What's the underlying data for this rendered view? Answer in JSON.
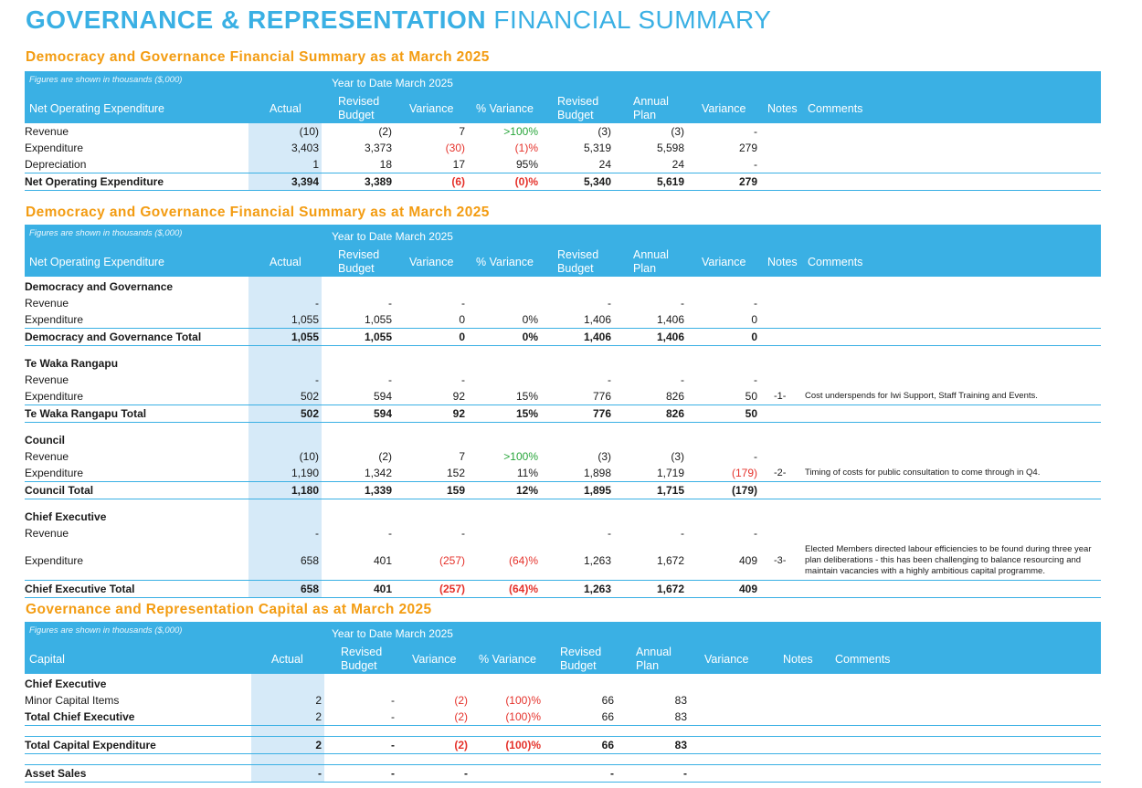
{
  "page": {
    "title_bold": "GOVERNANCE & REPRESENTATION",
    "title_light": "FINANCIAL SUMMARY"
  },
  "table1": {
    "title": "Democracy and Governance Financial Summary as at March 2025",
    "note": "Figures are shown in thousands ($,000)",
    "ytd": "Year to Date March 2025",
    "headers": [
      "Net Operating Expenditure",
      "Actual",
      "Revised Budget",
      "Variance",
      "% Variance",
      "Revised Budget",
      "Annual Plan",
      "Variance",
      "Notes",
      "Comments"
    ],
    "rows": [
      {
        "label": "Revenue",
        "v": [
          "(10)",
          "(2)",
          "7",
          ">100%",
          "(3)",
          "(3)",
          "-"
        ]
      },
      {
        "label": "Expenditure",
        "v": [
          "3,403",
          "3,373",
          "(30)",
          "(1)%",
          "5,319",
          "5,598",
          "279"
        ]
      },
      {
        "label": "Depreciation",
        "v": [
          "1",
          "18",
          "17",
          "95%",
          "24",
          "24",
          "-"
        ]
      },
      {
        "label": "Net Operating Expenditure",
        "v": [
          "3,394",
          "3,389",
          "(6)",
          "(0)%",
          "5,340",
          "5,619",
          "279"
        ]
      }
    ]
  },
  "table2": {
    "title": "Democracy and Governance Financial Summary as at March 2025",
    "note": "Figures are shown in thousands ($,000)",
    "ytd": "Year to Date March 2025",
    "headers": [
      "Net Operating Expenditure",
      "Actual",
      "Revised Budget",
      "Variance",
      "% Variance",
      "Revised Budget",
      "Annual Plan",
      "Variance",
      "Notes",
      "Comments"
    ],
    "groups": [
      {
        "name": "Democracy and Governance",
        "rows": [
          {
            "label": "Revenue",
            "v": [
              "-",
              "-",
              "-",
              "",
              "-",
              "-",
              "-"
            ]
          },
          {
            "label": "Expenditure",
            "v": [
              "1,055",
              "1,055",
              "0",
              "0%",
              "1,406",
              "1,406",
              "0"
            ]
          }
        ],
        "total": {
          "label": "Democracy and Governance Total",
          "v": [
            "1,055",
            "1,055",
            "0",
            "0%",
            "1,406",
            "1,406",
            "0"
          ]
        }
      },
      {
        "name": "Te Waka Rangapu",
        "rows": [
          {
            "label": "Revenue",
            "v": [
              "-",
              "-",
              "-",
              "",
              "-",
              "-",
              "-"
            ]
          },
          {
            "label": "Expenditure",
            "v": [
              "502",
              "594",
              "92",
              "15%",
              "776",
              "826",
              "50"
            ],
            "note": "-1-",
            "comment": "Cost underspends for Iwi Support, Staff Training and Events."
          }
        ],
        "total": {
          "label": "Te Waka Rangapu Total",
          "v": [
            "502",
            "594",
            "92",
            "15%",
            "776",
            "826",
            "50"
          ]
        }
      },
      {
        "name": "Council",
        "rows": [
          {
            "label": "Revenue",
            "v": [
              "(10)",
              "(2)",
              "7",
              ">100%",
              "(3)",
              "(3)",
              "-"
            ]
          },
          {
            "label": "Expenditure",
            "v": [
              "1,190",
              "1,342",
              "152",
              "11%",
              "1,898",
              "1,719",
              "(179)"
            ],
            "note": "-2-",
            "comment": "Timing of costs for public consultation to come through in Q4."
          }
        ],
        "total": {
          "label": "Council Total",
          "v": [
            "1,180",
            "1,339",
            "159",
            "12%",
            "1,895",
            "1,715",
            "(179)"
          ]
        }
      },
      {
        "name": "Chief Executive",
        "rows": [
          {
            "label": "Revenue",
            "v": [
              "-",
              "-",
              "-",
              "",
              "-",
              "-",
              "-"
            ]
          },
          {
            "label": "Expenditure",
            "v": [
              "658",
              "401",
              "(257)",
              "(64)%",
              "1,263",
              "1,672",
              "409"
            ],
            "note": "-3-",
            "comment": "Elected Members directed labour efficiencies to be found during three year plan deliberations - this has been challenging to balance resourcing and maintain vacancies with a highly ambitious capital programme."
          }
        ],
        "total": {
          "label": "Chief Executive Total",
          "v": [
            "658",
            "401",
            "(257)",
            "(64)%",
            "1,263",
            "1,672",
            "409"
          ]
        }
      }
    ]
  },
  "table3": {
    "title": "Governance and Representation Capital as at March 2025",
    "note": "Figures are shown in thousands ($,000)",
    "ytd": "Year to Date  March 2025",
    "headers": [
      "Capital",
      "Actual",
      "Revised Budget",
      "Variance",
      "% Variance",
      "Revised Budget",
      "Annual Plan",
      "Variance",
      "Notes",
      "Comments"
    ],
    "group": "Chief Executive",
    "rows": [
      {
        "label": "Minor Capital Items",
        "v": [
          "2",
          "-",
          "(2)",
          "(100)%",
          "66",
          "83",
          ""
        ]
      },
      {
        "label": "Total Chief Executive",
        "v": [
          "2",
          "-",
          "(2)",
          "(100)%",
          "66",
          "83",
          ""
        ]
      }
    ],
    "total_capex": {
      "label": "Total Capital Expenditure",
      "v": [
        "2",
        "-",
        "(2)",
        "(100)%",
        "66",
        "83",
        ""
      ]
    },
    "asset_sales": {
      "label": "Asset Sales",
      "v": [
        "-",
        "-",
        "-",
        "",
        "-",
        "-",
        ""
      ]
    }
  }
}
